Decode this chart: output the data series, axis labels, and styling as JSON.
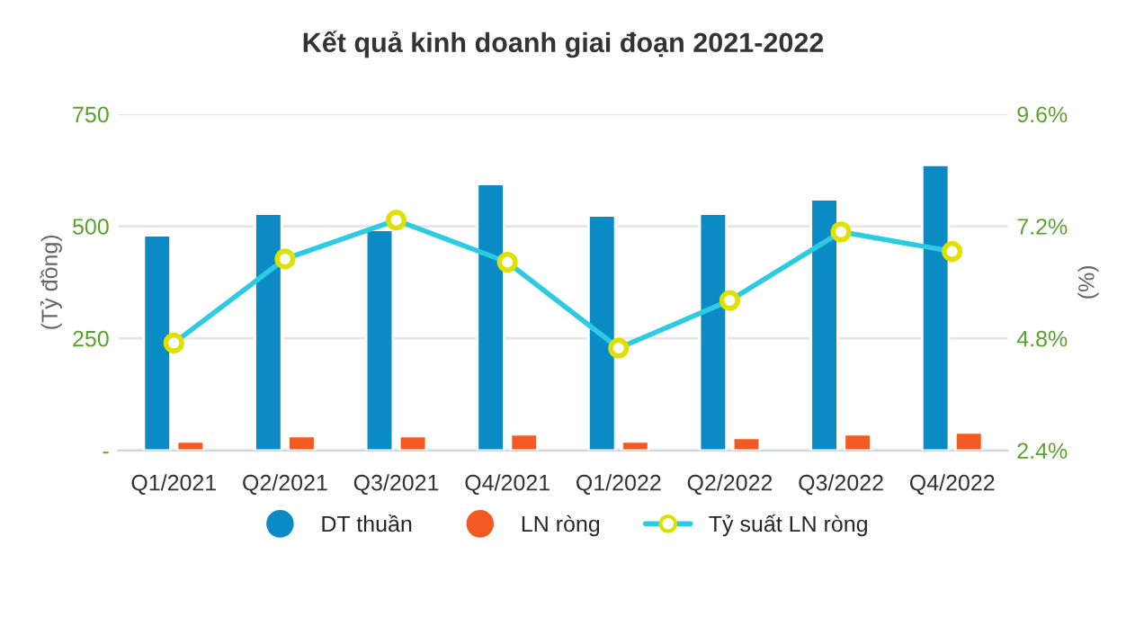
{
  "chart_data": {
    "type": "bar",
    "title": "Kết quả kinh doanh giai đoạn 2021-2022",
    "categories": [
      "Q1/2021",
      "Q2/2021",
      "Q3/2021",
      "Q4/2021",
      "Q1/2022",
      "Q2/2022",
      "Q3/2022",
      "Q4/2022"
    ],
    "series": [
      {
        "name": "DT thuần",
        "color": "#0a8bc6",
        "values": [
          480,
          528,
          492,
          594,
          524,
          528,
          560,
          637
        ]
      },
      {
        "name": "LN ròng",
        "color": "#f15a22",
        "values": [
          20,
          32,
          32,
          36,
          20,
          28,
          36,
          40
        ]
      },
      {
        "name": "Tỷ suất LN ròng",
        "type": "line",
        "axis": "y2",
        "color": "#2ccbe2",
        "marker": "circle",
        "values": [
          4.7,
          6.5,
          7.33,
          6.43,
          4.59,
          5.61,
          7.08,
          6.66
        ]
      }
    ],
    "ylabel": "(Tỷ đồng)",
    "y2label": "(%)",
    "ylim": [
      0,
      750
    ],
    "yticks": [
      {
        "value": 0,
        "label": "-"
      },
      250,
      500,
      750
    ],
    "y2lim": [
      2.4,
      9.6
    ],
    "y2ticks": [
      {
        "value": 2.4,
        "label": "2.4%"
      },
      {
        "value": 4.8,
        "label": "4.8%"
      },
      {
        "value": 7.2,
        "label": "7.2%"
      },
      {
        "value": 9.6,
        "label": "9.6%"
      }
    ],
    "grid": "y",
    "legend": "bottom"
  }
}
